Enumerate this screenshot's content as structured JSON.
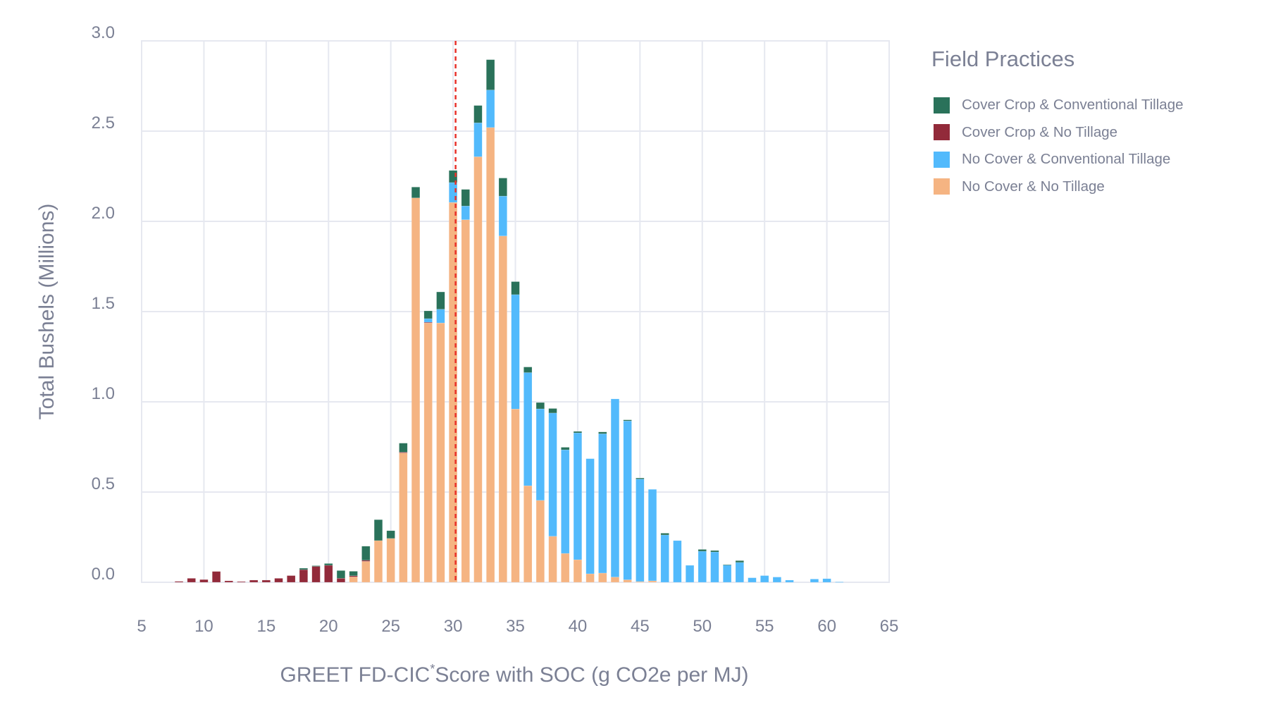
{
  "chart_data": {
    "type": "bar",
    "stacked": true,
    "xlabel": "GREET FD-CIC",
    "xlabel_superscript": "*",
    "xlabel_rest": "Score with SOC (g CO2e per MJ)",
    "ylabel": "Total Bushels (Millions)",
    "xlim": [
      5,
      65
    ],
    "ylim": [
      0,
      3.0
    ],
    "xticks": [
      "5",
      "10",
      "15",
      "20",
      "25",
      "30",
      "35",
      "40",
      "45",
      "50",
      "55",
      "60",
      "65"
    ],
    "yticks": [
      "0.0",
      "0.5",
      "1.0",
      "1.5",
      "2.0",
      "2.5",
      "3.0"
    ],
    "grid": true,
    "reference_line": {
      "x": 30.2,
      "style": "dashed",
      "color": "#e8322b"
    },
    "legend": {
      "title": "Field Practices",
      "position": "right"
    },
    "x": [
      8,
      9,
      10,
      11,
      12,
      13,
      14,
      15,
      16,
      17,
      18,
      19,
      20,
      21,
      22,
      23,
      24,
      25,
      26,
      27,
      28,
      29,
      30,
      31,
      32,
      33,
      34,
      35,
      36,
      37,
      38,
      39,
      40,
      41,
      42,
      43,
      44,
      45,
      46,
      47,
      48,
      49,
      50,
      51,
      52,
      53,
      54,
      55,
      56,
      57,
      58,
      59,
      60,
      61
    ],
    "series": [
      {
        "name": "No Cover & No Tillage",
        "color": "#f5b482",
        "values": [
          0,
          0,
          0,
          0,
          0,
          0,
          0,
          0,
          0,
          0,
          0,
          0,
          0,
          0,
          0.03,
          0.116,
          0.231,
          0.243,
          0.717,
          2.13,
          1.437,
          1.437,
          2.105,
          2.009,
          2.358,
          2.52,
          1.919,
          0.96,
          0.535,
          0.454,
          0.255,
          0.16,
          0.125,
          0.047,
          0.051,
          0.029,
          0.014,
          0.004,
          0.008,
          0,
          0,
          0,
          0,
          0,
          0,
          0,
          0,
          0,
          0,
          0,
          0,
          0,
          0,
          0
        ]
      },
      {
        "name": "Cover Crop & No Tillage",
        "color": "#922a3a",
        "values": [
          0.005,
          0.022,
          0.015,
          0.06,
          0.008,
          0.004,
          0.012,
          0.012,
          0.022,
          0.037,
          0.07,
          0.088,
          0.094,
          0.022,
          0.006,
          0.006,
          0,
          0,
          0.004,
          0,
          0.004,
          0,
          0,
          0,
          0,
          0,
          0,
          0,
          0,
          0,
          0,
          0,
          0,
          0,
          0,
          0,
          0,
          0,
          0,
          0,
          0,
          0,
          0,
          0,
          0,
          0,
          0,
          0,
          0,
          0,
          0,
          0,
          0,
          0
        ]
      },
      {
        "name": "No Cover & Conventional Tillage",
        "color": "#52bafc",
        "values": [
          0,
          0,
          0,
          0,
          0,
          0,
          0,
          0,
          0,
          0,
          0,
          0,
          0,
          0,
          0,
          0,
          0,
          0,
          0,
          0,
          0.02,
          0.076,
          0.11,
          0.076,
          0.188,
          0.208,
          0.221,
          0.634,
          0.627,
          0.507,
          0.683,
          0.574,
          0.703,
          0.638,
          0.772,
          0.987,
          0.88,
          0.568,
          0.507,
          0.262,
          0.231,
          0.094,
          0.172,
          0.168,
          0.096,
          0.11,
          0.025,
          0.037,
          0.029,
          0.012,
          0,
          0.018,
          0.02,
          0.002
        ]
      },
      {
        "name": "Cover Crop & Conventional Tillage",
        "color": "#2a725a",
        "values": [
          0,
          0,
          0,
          0,
          0,
          0,
          0,
          0,
          0,
          0,
          0.008,
          0.004,
          0.01,
          0.043,
          0.025,
          0.078,
          0.116,
          0.043,
          0.05,
          0.06,
          0.043,
          0.096,
          0.067,
          0.092,
          0.096,
          0.168,
          0.1,
          0.072,
          0.031,
          0.035,
          0.025,
          0.014,
          0.008,
          0,
          0.01,
          0,
          0.006,
          0.006,
          0,
          0.01,
          0,
          0,
          0.01,
          0.008,
          0.002,
          0.01,
          0,
          0,
          0,
          0,
          0,
          0,
          0,
          0
        ]
      }
    ]
  }
}
